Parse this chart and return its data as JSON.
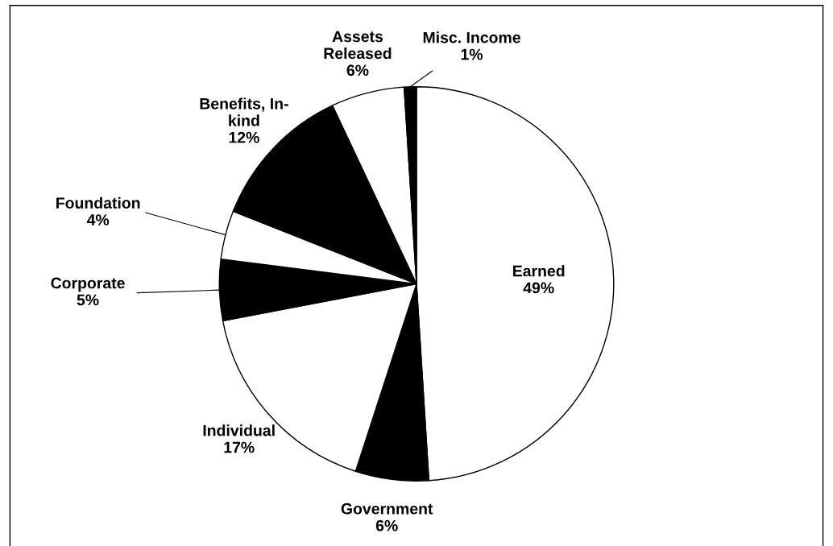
{
  "chart_data": {
    "type": "pie",
    "categories": [
      "Earned",
      "Government",
      "Individual",
      "Corporate",
      "Foundation",
      "Benefits, In-\nkind",
      "Assets\nReleased",
      "Misc. Income"
    ],
    "values": [
      49,
      6,
      17,
      5,
      4,
      12,
      6,
      1
    ],
    "value_labels": [
      "49%",
      "6%",
      "17%",
      "5%",
      "4%",
      "12%",
      "6%",
      "1%"
    ],
    "colors": [
      "#ffffff",
      "#000000",
      "#ffffff",
      "#000000",
      "#ffffff",
      "#000000",
      "#ffffff",
      "#000000"
    ],
    "legend": false
  }
}
